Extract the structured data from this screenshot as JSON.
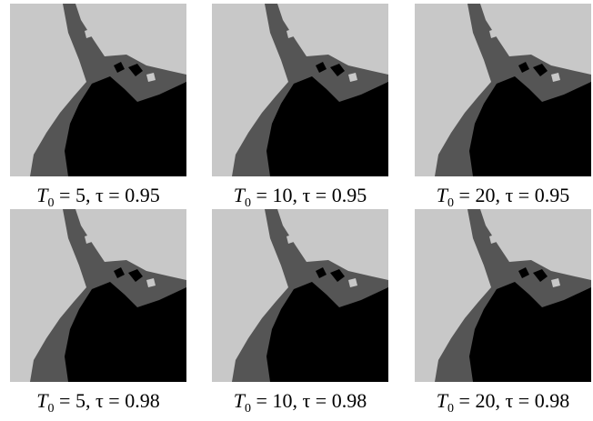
{
  "panels": [
    {
      "symbol": "T",
      "subscript": "0",
      "text": " = 5, τ = 0.95"
    },
    {
      "symbol": "T",
      "subscript": "0",
      "text": " = 10, τ = 0.95"
    },
    {
      "symbol": "T",
      "subscript": "0",
      "text": " = 20, τ = 0.95"
    },
    {
      "symbol": "T",
      "subscript": "0",
      "text": " = 5, τ = 0.98"
    },
    {
      "symbol": "T",
      "subscript": "0",
      "text": " = 10, τ = 0.98"
    },
    {
      "symbol": "T",
      "subscript": "0",
      "text": " = 20, τ = 0.98"
    }
  ]
}
